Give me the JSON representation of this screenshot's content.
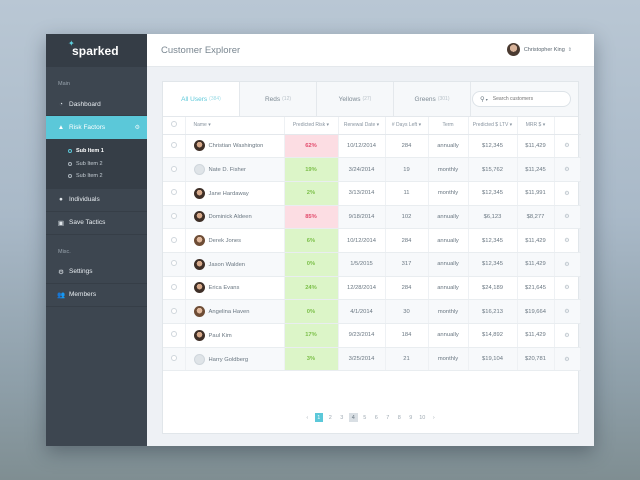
{
  "brand": "sparked",
  "page_title": "Customer Explorer",
  "user": {
    "name": "Christopher King"
  },
  "sidebar": {
    "main_label": "Main",
    "items": [
      {
        "label": "Dashboard",
        "icon": "dashboard-icon"
      },
      {
        "label": "Risk Factors",
        "icon": "warning-icon",
        "active": true
      },
      {
        "label": "Individuals",
        "icon": "user-icon"
      },
      {
        "label": "Save Tactics",
        "icon": "briefcase-icon"
      }
    ],
    "sub_items": [
      "Sub Item 1",
      "Sub Item 2",
      "Sub Item 2"
    ],
    "misc_label": "Misc.",
    "misc_items": [
      {
        "label": "Settings",
        "icon": "gear-icon"
      },
      {
        "label": "Members",
        "icon": "users-icon"
      }
    ]
  },
  "tabs": [
    {
      "label": "All Users",
      "count": "(384)"
    },
    {
      "label": "Reds",
      "count": "(12)"
    },
    {
      "label": "Yellows",
      "count": "(27)"
    },
    {
      "label": "Greens",
      "count": "(301)"
    }
  ],
  "search": {
    "placeholder": "Search customers"
  },
  "table": {
    "headers": [
      "Name",
      "Predicted Risk",
      "Renewal Date",
      "# Days Left",
      "Term",
      "Predicted $ LTV",
      "MRR $"
    ],
    "rows": [
      {
        "name": "Christian Washington",
        "risk": "62%",
        "renewal": "10/12/2014",
        "days": "284",
        "term": "annually",
        "ltv": "$12,345",
        "mrr": "$11,429"
      },
      {
        "name": "Nate D. Fisher",
        "risk": "19%",
        "renewal": "3/24/2014",
        "days": "19",
        "term": "monthly",
        "ltv": "$15,762",
        "mrr": "$11,245"
      },
      {
        "name": "Jane Hardaway",
        "risk": "2%",
        "renewal": "3/13/2014",
        "days": "11",
        "term": "monthly",
        "ltv": "$12,345",
        "mrr": "$11,991"
      },
      {
        "name": "Dominick Aldeen",
        "risk": "85%",
        "renewal": "9/18/2014",
        "days": "102",
        "term": "annually",
        "ltv": "$6,123",
        "mrr": "$8,277"
      },
      {
        "name": "Derek Jones",
        "risk": "6%",
        "renewal": "10/12/2014",
        "days": "284",
        "term": "annually",
        "ltv": "$12,345",
        "mrr": "$11,429"
      },
      {
        "name": "Jason Walden",
        "risk": "0%",
        "renewal": "1/5/2015",
        "days": "317",
        "term": "annually",
        "ltv": "$12,345",
        "mrr": "$11,429"
      },
      {
        "name": "Erica Evans",
        "risk": "24%",
        "renewal": "12/28/2014",
        "days": "284",
        "term": "annually",
        "ltv": "$24,189",
        "mrr": "$21,645"
      },
      {
        "name": "Angelina Haven",
        "risk": "0%",
        "renewal": "4/1/2014",
        "days": "30",
        "term": "monthly",
        "ltv": "$16,213",
        "mrr": "$19,664"
      },
      {
        "name": "Paul Kim",
        "risk": "17%",
        "renewal": "9/23/2014",
        "days": "184",
        "term": "annually",
        "ltv": "$14,892",
        "mrr": "$11,429"
      },
      {
        "name": "Harry Goldberg",
        "risk": "3%",
        "renewal": "3/25/2014",
        "days": "21",
        "term": "monthly",
        "ltv": "$19,104",
        "mrr": "$20,781"
      }
    ]
  },
  "pagination": {
    "pages": [
      "1",
      "2",
      "3",
      "4",
      "5",
      "6",
      "7",
      "8",
      "9",
      "10"
    ],
    "current": "1"
  },
  "colors": {
    "accent": "#5bc8d9",
    "risk_green": "#dcf5c8",
    "risk_red": "#fcdde3"
  }
}
